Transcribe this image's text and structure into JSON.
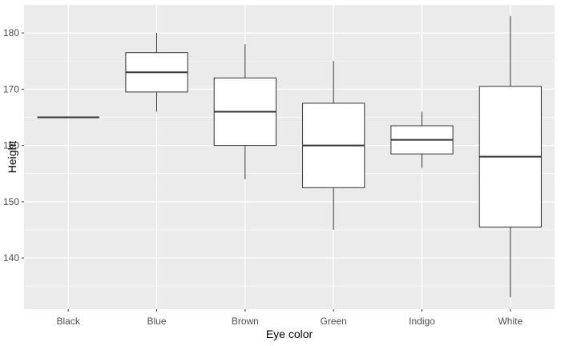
{
  "chart_data": {
    "type": "boxplot",
    "xlabel": "Eye color",
    "ylabel": "Height",
    "categories": [
      "Black",
      "Blue",
      "Brown",
      "Green",
      "Indigo",
      "White"
    ],
    "boxes": [
      {
        "category": "Black",
        "min": 165,
        "q1": 165,
        "median": 165,
        "q3": 165,
        "max": 165
      },
      {
        "category": "Blue",
        "min": 166,
        "q1": 169.5,
        "median": 173,
        "q3": 176.5,
        "max": 180
      },
      {
        "category": "Brown",
        "min": 154,
        "q1": 160,
        "median": 166,
        "q3": 172,
        "max": 178
      },
      {
        "category": "Green",
        "min": 145,
        "q1": 152.5,
        "median": 160,
        "q3": 167.5,
        "max": 175
      },
      {
        "category": "Indigo",
        "min": 156,
        "q1": 158.5,
        "median": 161,
        "q3": 163.5,
        "max": 166
      },
      {
        "category": "White",
        "min": 133,
        "q1": 145.5,
        "median": 158,
        "q3": 170.5,
        "max": 183
      }
    ],
    "yticks": [
      140,
      150,
      160,
      170,
      180
    ],
    "ylim": [
      130.9,
      185.0
    ],
    "grid": true,
    "background": "#ebebeb",
    "grid_major_color": "#ffffff",
    "box_fill": "#ffffff",
    "box_stroke": "#333333"
  }
}
